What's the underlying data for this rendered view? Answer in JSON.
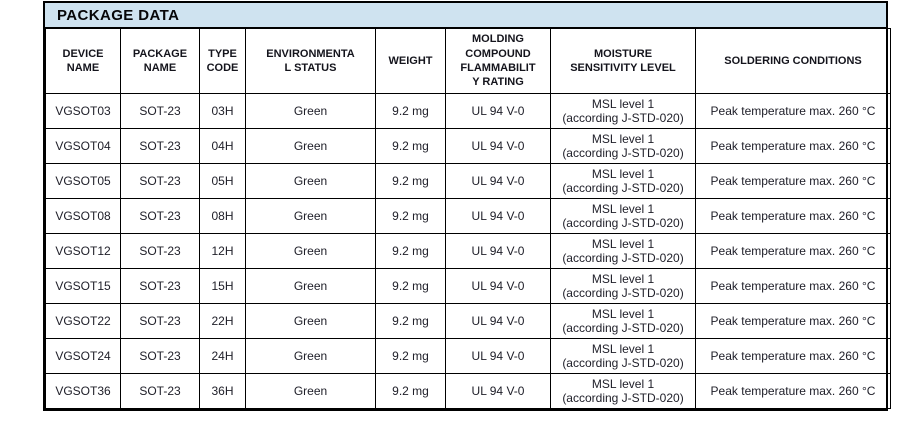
{
  "colors": {
    "title_bar_bg": "#cfe3f0",
    "border": "#000000",
    "text": "#20202a"
  },
  "title": "PACKAGE DATA",
  "table": {
    "columns": [
      {
        "id": "device-name",
        "lines": [
          "DEVICE",
          "NAME"
        ]
      },
      {
        "id": "package-name",
        "lines": [
          "PACKAGE",
          "NAME"
        ]
      },
      {
        "id": "type-code",
        "lines": [
          "TYPE",
          "CODE"
        ]
      },
      {
        "id": "environmental-status",
        "lines": [
          "ENVIRONMENTA",
          "L STATUS"
        ]
      },
      {
        "id": "weight",
        "lines": [
          "WEIGHT"
        ]
      },
      {
        "id": "molding-compound-flammability-rating",
        "lines": [
          "MOLDING",
          "COMPOUND",
          "FLAMMABILIT",
          "Y RATING"
        ]
      },
      {
        "id": "moisture-sensitivity-level",
        "lines": [
          "MOISTURE",
          "SENSITIVITY LEVEL"
        ]
      },
      {
        "id": "soldering-conditions",
        "lines": [
          "SOLDERING CONDITIONS"
        ]
      }
    ],
    "rows": [
      {
        "device": "VGSOT03",
        "package": "SOT-23",
        "type_code": "03H",
        "env_status": "Green",
        "weight": "9.2 mg",
        "flammability": "UL 94 V-0",
        "msl_line1": "MSL level 1",
        "msl_line2": "(according J-STD-020)",
        "soldering": "Peak temperature max. 260 °C"
      },
      {
        "device": "VGSOT04",
        "package": "SOT-23",
        "type_code": "04H",
        "env_status": "Green",
        "weight": "9.2 mg",
        "flammability": "UL 94 V-0",
        "msl_line1": "MSL level 1",
        "msl_line2": "(according J-STD-020)",
        "soldering": "Peak temperature max. 260 °C"
      },
      {
        "device": "VGSOT05",
        "package": "SOT-23",
        "type_code": "05H",
        "env_status": "Green",
        "weight": "9.2 mg",
        "flammability": "UL 94 V-0",
        "msl_line1": "MSL level 1",
        "msl_line2": "(according J-STD-020)",
        "soldering": "Peak temperature max. 260 °C"
      },
      {
        "device": "VGSOT08",
        "package": "SOT-23",
        "type_code": "08H",
        "env_status": "Green",
        "weight": "9.2 mg",
        "flammability": "UL 94 V-0",
        "msl_line1": "MSL level 1",
        "msl_line2": "(according J-STD-020)",
        "soldering": "Peak temperature max. 260 °C"
      },
      {
        "device": "VGSOT12",
        "package": "SOT-23",
        "type_code": "12H",
        "env_status": "Green",
        "weight": "9.2 mg",
        "flammability": "UL 94 V-0",
        "msl_line1": "MSL level 1",
        "msl_line2": "(according J-STD-020)",
        "soldering": "Peak temperature max. 260 °C"
      },
      {
        "device": "VGSOT15",
        "package": "SOT-23",
        "type_code": "15H",
        "env_status": "Green",
        "weight": "9.2 mg",
        "flammability": "UL 94 V-0",
        "msl_line1": "MSL level 1",
        "msl_line2": "(according J-STD-020)",
        "soldering": "Peak temperature max. 260 °C"
      },
      {
        "device": "VGSOT22",
        "package": "SOT-23",
        "type_code": "22H",
        "env_status": "Green",
        "weight": "9.2 mg",
        "flammability": "UL 94 V-0",
        "msl_line1": "MSL level 1",
        "msl_line2": "(according J-STD-020)",
        "soldering": "Peak temperature max. 260 °C"
      },
      {
        "device": "VGSOT24",
        "package": "SOT-23",
        "type_code": "24H",
        "env_status": "Green",
        "weight": "9.2 mg",
        "flammability": "UL 94 V-0",
        "msl_line1": "MSL level 1",
        "msl_line2": "(according J-STD-020)",
        "soldering": "Peak temperature max. 260 °C"
      },
      {
        "device": "VGSOT36",
        "package": "SOT-23",
        "type_code": "36H",
        "env_status": "Green",
        "weight": "9.2 mg",
        "flammability": "UL 94 V-0",
        "msl_line1": "MSL level 1",
        "msl_line2": "(according J-STD-020)",
        "soldering": "Peak temperature max. 260 °C"
      }
    ]
  }
}
